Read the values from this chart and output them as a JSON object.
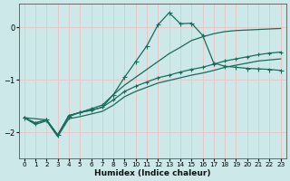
{
  "xlabel": "Humidex (Indice chaleur)",
  "background_color": "#cce8e8",
  "grid_color": "#e8c8c8",
  "line_color": "#1a6b5a",
  "xlim": [
    -0.5,
    23.5
  ],
  "ylim": [
    -2.5,
    0.45
  ],
  "yticks": [
    0,
    -1,
    -2
  ],
  "xticks": [
    0,
    1,
    2,
    3,
    4,
    5,
    6,
    7,
    8,
    9,
    10,
    11,
    12,
    13,
    14,
    15,
    16,
    17,
    18,
    19,
    20,
    21,
    22,
    23
  ],
  "series1_x": [
    0,
    1,
    2,
    3,
    4,
    5,
    6,
    7,
    8,
    9,
    10,
    11,
    12,
    13,
    14,
    15,
    16,
    17,
    18,
    19,
    20,
    21,
    22,
    23
  ],
  "series1_y": [
    -1.72,
    -1.82,
    -1.76,
    -2.05,
    -1.7,
    -1.62,
    -1.55,
    -1.48,
    -1.28,
    -0.95,
    -0.65,
    -0.35,
    0.05,
    0.28,
    0.07,
    0.08,
    -0.15,
    -0.68,
    -0.74,
    -0.76,
    -0.78,
    -0.79,
    -0.8,
    -0.82
  ],
  "series2_x": [
    0,
    1,
    2,
    3,
    4,
    5,
    6,
    7,
    8,
    9,
    10,
    11,
    12,
    13,
    14,
    15,
    16,
    17,
    18,
    19,
    20,
    21,
    22,
    23
  ],
  "series2_y": [
    -1.72,
    -1.82,
    -1.76,
    -2.05,
    -1.68,
    -1.62,
    -1.58,
    -1.52,
    -1.38,
    -1.22,
    -1.12,
    -1.04,
    -0.96,
    -0.91,
    -0.85,
    -0.8,
    -0.76,
    -0.7,
    -0.64,
    -0.6,
    -0.56,
    -0.52,
    -0.49,
    -0.47
  ],
  "series3_x": [
    0,
    1,
    2,
    3,
    4,
    5,
    6,
    7,
    8,
    9,
    10,
    11,
    12,
    13,
    14,
    15,
    16,
    17,
    18,
    19,
    20,
    21,
    22,
    23
  ],
  "series3_y": [
    -1.72,
    -1.85,
    -1.78,
    -2.08,
    -1.74,
    -1.7,
    -1.65,
    -1.6,
    -1.48,
    -1.32,
    -1.22,
    -1.14,
    -1.06,
    -1.01,
    -0.96,
    -0.91,
    -0.87,
    -0.82,
    -0.76,
    -0.72,
    -0.68,
    -0.64,
    -0.62,
    -0.6
  ],
  "series4_x": [
    0,
    2,
    3,
    4,
    5,
    6,
    7,
    8,
    9,
    10,
    11,
    12,
    13,
    14,
    15,
    16,
    17,
    18,
    19,
    20,
    21,
    22,
    23
  ],
  "series4_y": [
    -1.72,
    -1.76,
    -2.05,
    -1.68,
    -1.62,
    -1.58,
    -1.52,
    -1.28,
    -1.1,
    -0.95,
    -0.8,
    -0.65,
    -0.5,
    -0.38,
    -0.25,
    -0.18,
    -0.12,
    -0.08,
    -0.06,
    -0.05,
    -0.04,
    -0.03,
    -0.02
  ]
}
